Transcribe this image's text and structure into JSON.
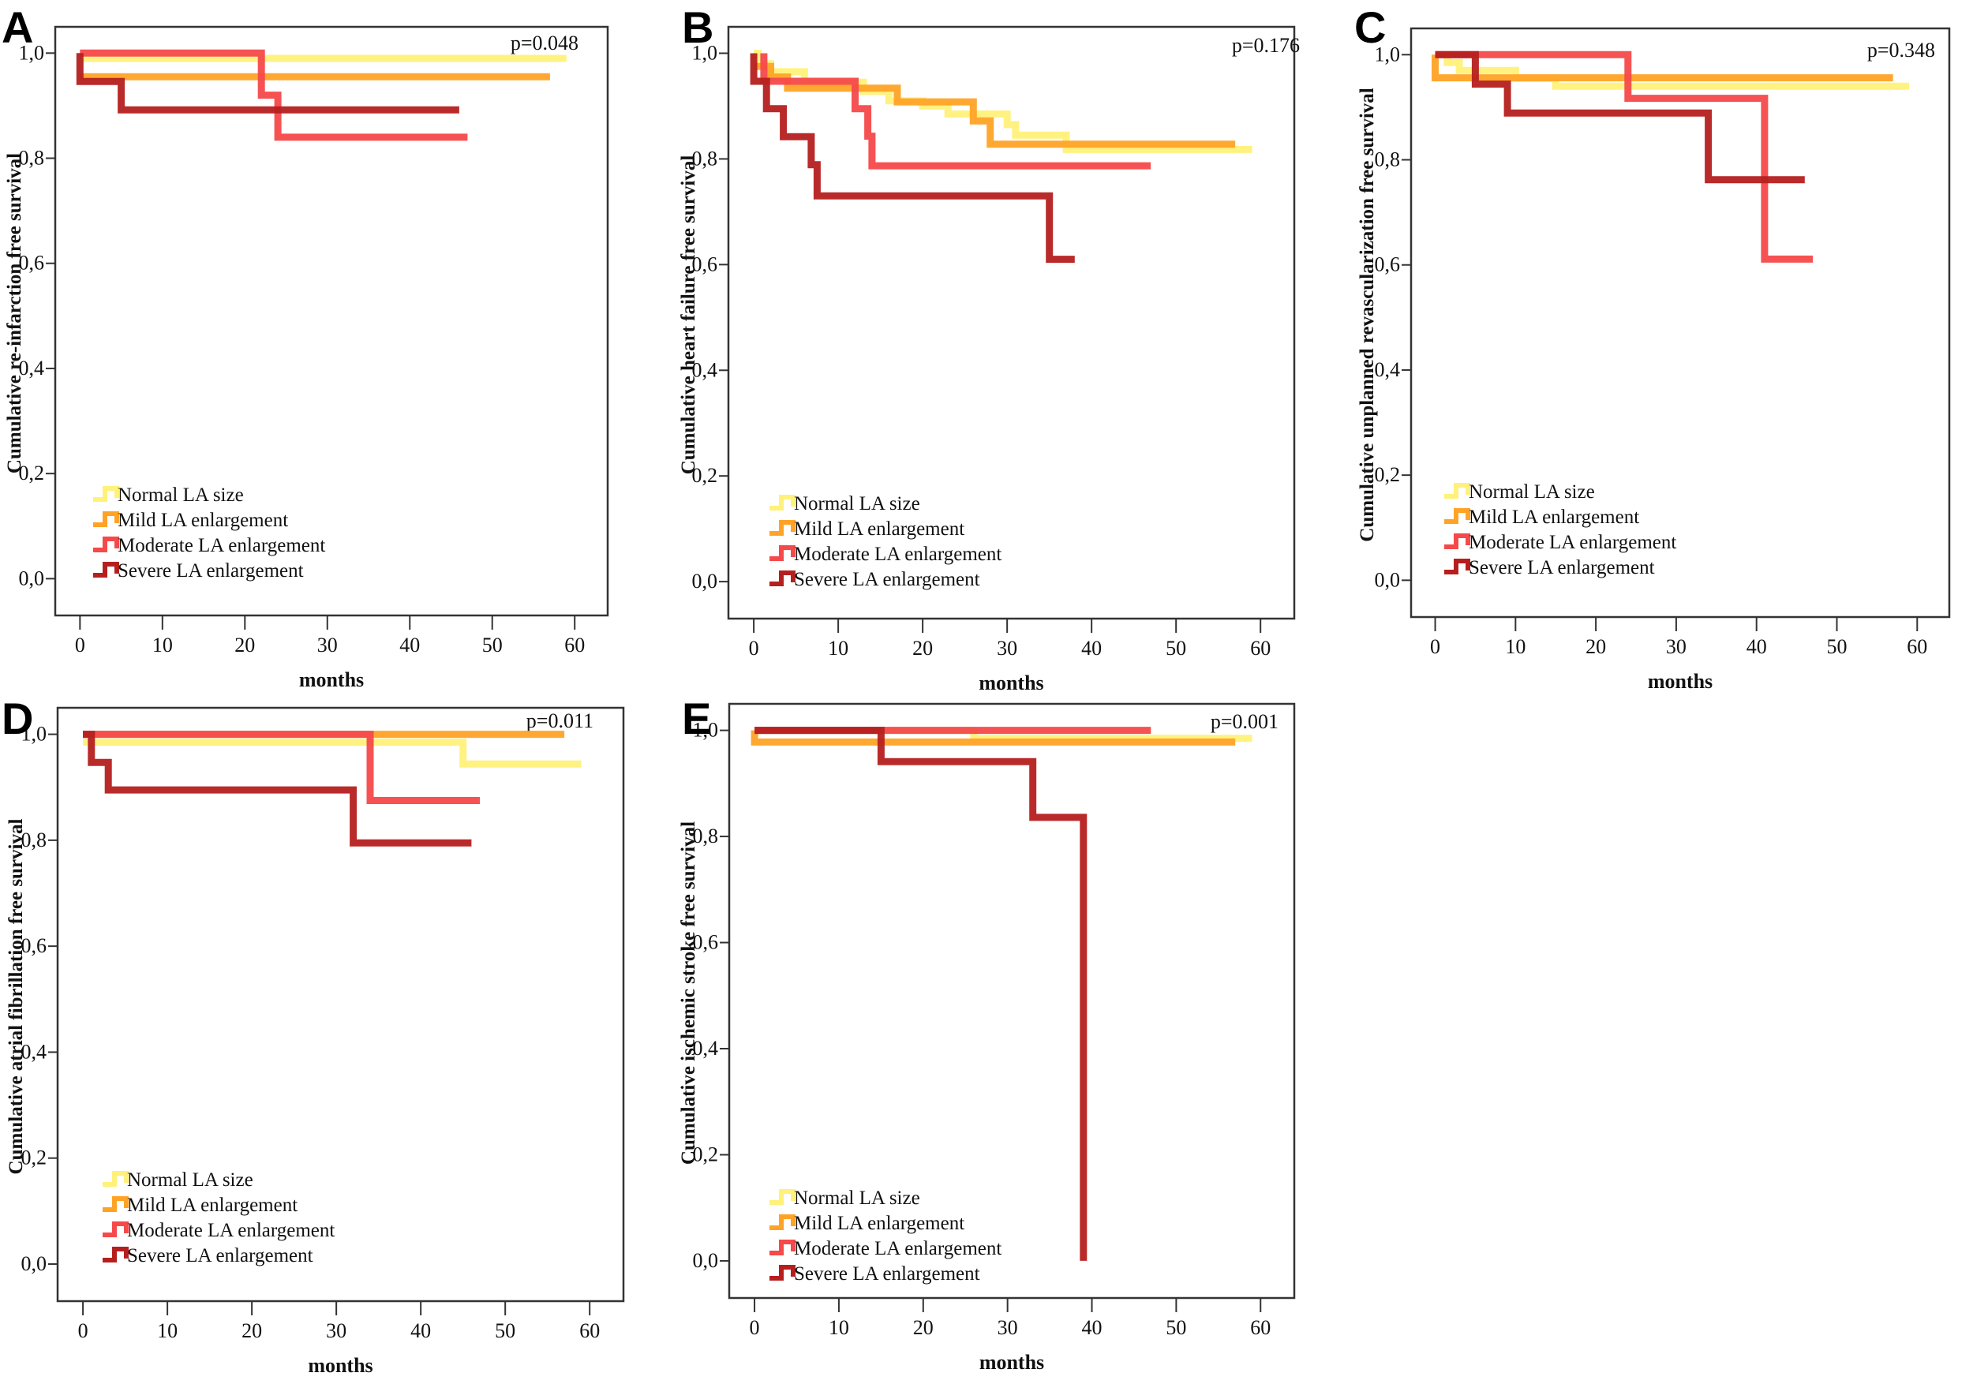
{
  "figure": {
    "series_colors": {
      "normal": "#fff17a",
      "mild": "#ffa326",
      "moderate": "#f5494a",
      "severe": "#b5201f"
    },
    "legend_labels": [
      "Normal LA size",
      "Mild LA enlargement",
      "Moderate LA enlargement",
      "Severe LA enlargement"
    ]
  },
  "chart_data": [
    {
      "type": "line",
      "panel": "A",
      "title": "",
      "p_value": "p=0.048",
      "xlabel": "months",
      "ylabel": "Cumulative re-infarction free survival",
      "xlim": [
        -3,
        64
      ],
      "ylim": [
        -0.07,
        1.05
      ],
      "xticks": [
        "0",
        "10",
        "20",
        "30",
        "40",
        "50",
        "60"
      ],
      "yticks": [
        "0,0",
        "0,2",
        "0,4",
        "0,6",
        "0,8",
        "1,0"
      ],
      "legend_position": "bottom-left",
      "series": [
        {
          "name": "Normal LA size",
          "key": "normal",
          "steps": [
            [
              0,
              0.99
            ],
            [
              59,
              0.99
            ]
          ]
        },
        {
          "name": "Mild LA enlargement",
          "key": "mild",
          "steps": [
            [
              0,
              0.955
            ],
            [
              57,
              0.955
            ]
          ]
        },
        {
          "name": "Moderate LA enlargement",
          "key": "moderate",
          "steps": [
            [
              0,
              1.0
            ],
            [
              22,
              1.0
            ],
            [
              22,
              0.92
            ],
            [
              24,
              0.92
            ],
            [
              24,
              0.84
            ],
            [
              47,
              0.84
            ]
          ]
        },
        {
          "name": "Severe LA enlargement",
          "key": "severe",
          "steps": [
            [
              0,
              1.0
            ],
            [
              0,
              0.946
            ],
            [
              5,
              0.946
            ],
            [
              5,
              0.892
            ],
            [
              46,
              0.892
            ]
          ]
        }
      ]
    },
    {
      "type": "line",
      "panel": "B",
      "title": "",
      "p_value": "p=0.176",
      "xlabel": "months",
      "ylabel": "Cumulative heart failure free survival",
      "xlim": [
        -3,
        64
      ],
      "ylim": [
        -0.07,
        1.05
      ],
      "xticks": [
        "0",
        "10",
        "20",
        "30",
        "40",
        "50",
        "60"
      ],
      "yticks": [
        "0,0",
        "0,2",
        "0,4",
        "0,6",
        "0,8",
        "1,0"
      ],
      "legend_position": "bottom-left",
      "series": [
        {
          "name": "Normal LA size",
          "key": "normal",
          "steps": [
            [
              0,
              1.0
            ],
            [
              0.5,
              1.0
            ],
            [
              0.5,
              0.98
            ],
            [
              2,
              0.98
            ],
            [
              2,
              0.965
            ],
            [
              6,
              0.965
            ],
            [
              6,
              0.945
            ],
            [
              13,
              0.945
            ],
            [
              13,
              0.928
            ],
            [
              16,
              0.928
            ],
            [
              16,
              0.91
            ],
            [
              20,
              0.91
            ],
            [
              20,
              0.9
            ],
            [
              23,
              0.9
            ],
            [
              23,
              0.885
            ],
            [
              30,
              0.885
            ],
            [
              30,
              0.865
            ],
            [
              31,
              0.865
            ],
            [
              31,
              0.845
            ],
            [
              37,
              0.845
            ],
            [
              37,
              0.818
            ],
            [
              59,
              0.818
            ]
          ]
        },
        {
          "name": "Mild LA enlargement",
          "key": "mild",
          "steps": [
            [
              0,
              0.975
            ],
            [
              2,
              0.975
            ],
            [
              2,
              0.955
            ],
            [
              4,
              0.955
            ],
            [
              4,
              0.934
            ],
            [
              17,
              0.934
            ],
            [
              17,
              0.908
            ],
            [
              26,
              0.908
            ],
            [
              26,
              0.872
            ],
            [
              28,
              0.872
            ],
            [
              28,
              0.828
            ],
            [
              57,
              0.828
            ]
          ]
        },
        {
          "name": "Moderate LA enlargement",
          "key": "moderate",
          "steps": [
            [
              1.2,
              1.0
            ],
            [
              1.2,
              0.947
            ],
            [
              12,
              0.947
            ],
            [
              12,
              0.895
            ],
            [
              13.5,
              0.895
            ],
            [
              13.5,
              0.843
            ],
            [
              14,
              0.843
            ],
            [
              14,
              0.787
            ],
            [
              47,
              0.787
            ]
          ]
        },
        {
          "name": "Severe LA enlargement",
          "key": "severe",
          "steps": [
            [
              0,
              1.0
            ],
            [
              0,
              0.947
            ],
            [
              1.5,
              0.947
            ],
            [
              1.5,
              0.895
            ],
            [
              3.5,
              0.895
            ],
            [
              3.5,
              0.842
            ],
            [
              6.8,
              0.842
            ],
            [
              6.8,
              0.789
            ],
            [
              7.5,
              0.789
            ],
            [
              7.5,
              0.73
            ],
            [
              35,
              0.73
            ],
            [
              35,
              0.61
            ],
            [
              38,
              0.61
            ]
          ]
        }
      ]
    },
    {
      "type": "line",
      "panel": "C",
      "title": "",
      "p_value": "p=0.348",
      "xlabel": "months",
      "ylabel": "Cumulative unplanned revascularization free survival",
      "xlim": [
        -3,
        64
      ],
      "ylim": [
        -0.07,
        1.05
      ],
      "xticks": [
        "0",
        "10",
        "20",
        "30",
        "40",
        "50",
        "60"
      ],
      "yticks": [
        "0,0",
        "0,2",
        "0,4",
        "0,6",
        "0,8",
        "1,0"
      ],
      "legend_position": "bottom-left",
      "series": [
        {
          "name": "Normal LA size",
          "key": "normal",
          "steps": [
            [
              0,
              1.0
            ],
            [
              1.5,
              1.0
            ],
            [
              1.5,
              0.985
            ],
            [
              3,
              0.985
            ],
            [
              3,
              0.97
            ],
            [
              10,
              0.97
            ],
            [
              10,
              0.955
            ],
            [
              15,
              0.955
            ],
            [
              15,
              0.94
            ],
            [
              59,
              0.94
            ]
          ]
        },
        {
          "name": "Mild LA enlargement",
          "key": "mild",
          "steps": [
            [
              0,
              1.0
            ],
            [
              0,
              0.956
            ],
            [
              57,
              0.956
            ]
          ]
        },
        {
          "name": "Moderate LA enlargement",
          "key": "moderate",
          "steps": [
            [
              0,
              1.0
            ],
            [
              24,
              1.0
            ],
            [
              24,
              0.917
            ],
            [
              41,
              0.917
            ],
            [
              41,
              0.611
            ],
            [
              47,
              0.611
            ]
          ]
        },
        {
          "name": "Severe LA enlargement",
          "key": "severe",
          "steps": [
            [
              0,
              1.0
            ],
            [
              5,
              1.0
            ],
            [
              5,
              0.944
            ],
            [
              9,
              0.944
            ],
            [
              9,
              0.889
            ],
            [
              34,
              0.889
            ],
            [
              34,
              0.762
            ],
            [
              46,
              0.762
            ]
          ]
        }
      ]
    },
    {
      "type": "line",
      "panel": "D",
      "title": "",
      "p_value": "p=0.011",
      "xlabel": "months",
      "ylabel": "Cumulative atrial fibrillation free survival",
      "xlim": [
        -3,
        64
      ],
      "ylim": [
        -0.07,
        1.05
      ],
      "xticks": [
        "0",
        "10",
        "20",
        "30",
        "40",
        "50",
        "60"
      ],
      "yticks": [
        "0,0",
        "0,2",
        "0,4",
        "0,6",
        "0,8",
        "1,0"
      ],
      "legend_position": "bottom-left",
      "series": [
        {
          "name": "Normal LA size",
          "key": "normal",
          "steps": [
            [
              0,
              0.985
            ],
            [
              45,
              0.985
            ],
            [
              45,
              0.944
            ],
            [
              59,
              0.944
            ]
          ]
        },
        {
          "name": "Mild LA enlargement",
          "key": "mild",
          "steps": [
            [
              0,
              1.0
            ],
            [
              57,
              1.0
            ]
          ]
        },
        {
          "name": "Moderate LA enlargement",
          "key": "moderate",
          "steps": [
            [
              0,
              1.0
            ],
            [
              34,
              1.0
            ],
            [
              34,
              0.875
            ],
            [
              47,
              0.875
            ]
          ]
        },
        {
          "name": "Severe LA enlargement",
          "key": "severe",
          "steps": [
            [
              0,
              1.0
            ],
            [
              1,
              1.0
            ],
            [
              1,
              0.947
            ],
            [
              3,
              0.947
            ],
            [
              3,
              0.895
            ],
            [
              32,
              0.895
            ],
            [
              32,
              0.795
            ],
            [
              46,
              0.795
            ]
          ]
        }
      ]
    },
    {
      "type": "line",
      "panel": "E",
      "title": "",
      "p_value": "p=0.001",
      "xlabel": "months",
      "ylabel": "Cumulative ischemic stroke free survival",
      "xlim": [
        -3,
        64
      ],
      "ylim": [
        -0.07,
        1.05
      ],
      "xticks": [
        "0",
        "10",
        "20",
        "30",
        "40",
        "50",
        "60"
      ],
      "yticks": [
        "0,0",
        "0,2",
        "0,4",
        "0,6",
        "0,8",
        "1,0"
      ],
      "legend_position": "bottom-left",
      "series": [
        {
          "name": "Normal LA size",
          "key": "normal",
          "steps": [
            [
              0,
              1.0
            ],
            [
              26,
              1.0
            ],
            [
              26,
              0.985
            ],
            [
              59,
              0.985
            ]
          ]
        },
        {
          "name": "Mild LA enlargement",
          "key": "mild",
          "steps": [
            [
              0,
              1.0
            ],
            [
              0,
              0.978
            ],
            [
              57,
              0.978
            ]
          ]
        },
        {
          "name": "Moderate LA enlargement",
          "key": "moderate",
          "steps": [
            [
              0,
              1.0
            ],
            [
              47,
              1.0
            ]
          ]
        },
        {
          "name": "Severe LA enlargement",
          "key": "severe",
          "steps": [
            [
              0,
              1.0
            ],
            [
              15,
              1.0
            ],
            [
              15,
              0.941
            ],
            [
              33,
              0.941
            ],
            [
              33,
              0.836
            ],
            [
              39,
              0.836
            ],
            [
              39,
              0.0
            ]
          ]
        }
      ]
    }
  ]
}
